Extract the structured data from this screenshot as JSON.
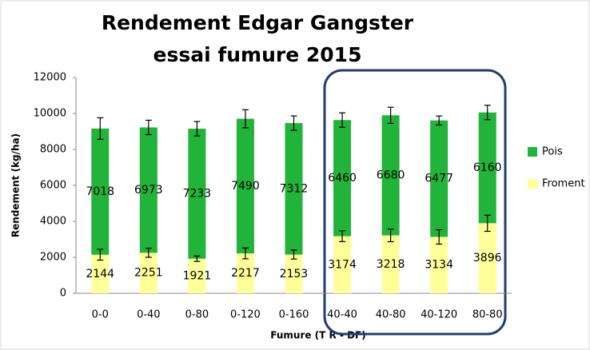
{
  "chart_data": {
    "type": "stacked-bar",
    "title": [
      "Rendement  Edgar Gangster",
      "essai fumure 2015"
    ],
    "x_label": "Fumure (T R - DF)",
    "y_label": "Rendement (kg/ha)",
    "categories": [
      "0-0",
      "0-40",
      "0-80",
      "0-120",
      "0-160",
      "40-40",
      "40-80",
      "40-120",
      "80-80"
    ],
    "series": [
      {
        "name": "Froment",
        "color": "#ffff99",
        "values": [
          2144,
          2251,
          1921,
          2217,
          2153,
          3174,
          3218,
          3134,
          3896
        ],
        "errors": [
          300,
          250,
          150,
          300,
          250,
          300,
          350,
          400,
          450
        ]
      },
      {
        "name": "Pois",
        "color": "#22b33a",
        "values": [
          7018,
          6973,
          7233,
          7490,
          7312,
          6460,
          6680,
          6477,
          6160
        ],
        "errors": [
          600,
          400,
          400,
          500,
          400,
          400,
          450,
          250,
          400
        ]
      }
    ],
    "ylim": [
      0,
      12000
    ],
    "yticks": [
      0,
      2000,
      4000,
      6000,
      8000,
      10000,
      12000
    ],
    "grid": false,
    "legend": "right"
  }
}
